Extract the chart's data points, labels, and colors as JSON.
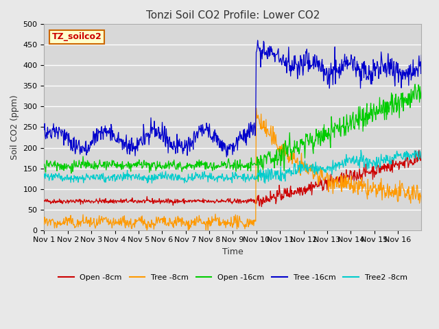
{
  "title": "Tonzi Soil CO2 Profile: Lower CO2",
  "ylabel": "Soil CO2 (ppm)",
  "xlabel": "Time",
  "watermark": "TZ_soilco2",
  "ylim": [
    0,
    500
  ],
  "bg_color": "#e8e8e8",
  "plot_bg_color": "#d8d8d8",
  "grid_color": "#ffffff",
  "series": {
    "open_8cm": {
      "color": "#cc0000",
      "label": "Open -8cm"
    },
    "tree_8cm": {
      "color": "#ff9900",
      "label": "Tree -8cm"
    },
    "open_16cm": {
      "color": "#00cc00",
      "label": "Open -16cm"
    },
    "tree_16cm": {
      "color": "#0000cc",
      "label": "Tree -16cm"
    },
    "tree2_8cm": {
      "color": "#00cccc",
      "label": "Tree2 -8cm"
    }
  },
  "xtick_positions": [
    0,
    1,
    2,
    3,
    4,
    5,
    6,
    7,
    8,
    9,
    10,
    11,
    12,
    13,
    14,
    15
  ],
  "xtick_labels": [
    "Nov 1",
    "Nov 2",
    "Nov 3",
    "Nov 4",
    "Nov 5",
    "Nov 6",
    "Nov 7",
    "Nov 8",
    "Nov 9",
    "Nov 10",
    "Nov 11",
    "Nov 12",
    "Nov 13",
    "Nov 14",
    "Nov 15",
    "Nov 16"
  ],
  "n_days": 16,
  "transition_day": 9.0
}
